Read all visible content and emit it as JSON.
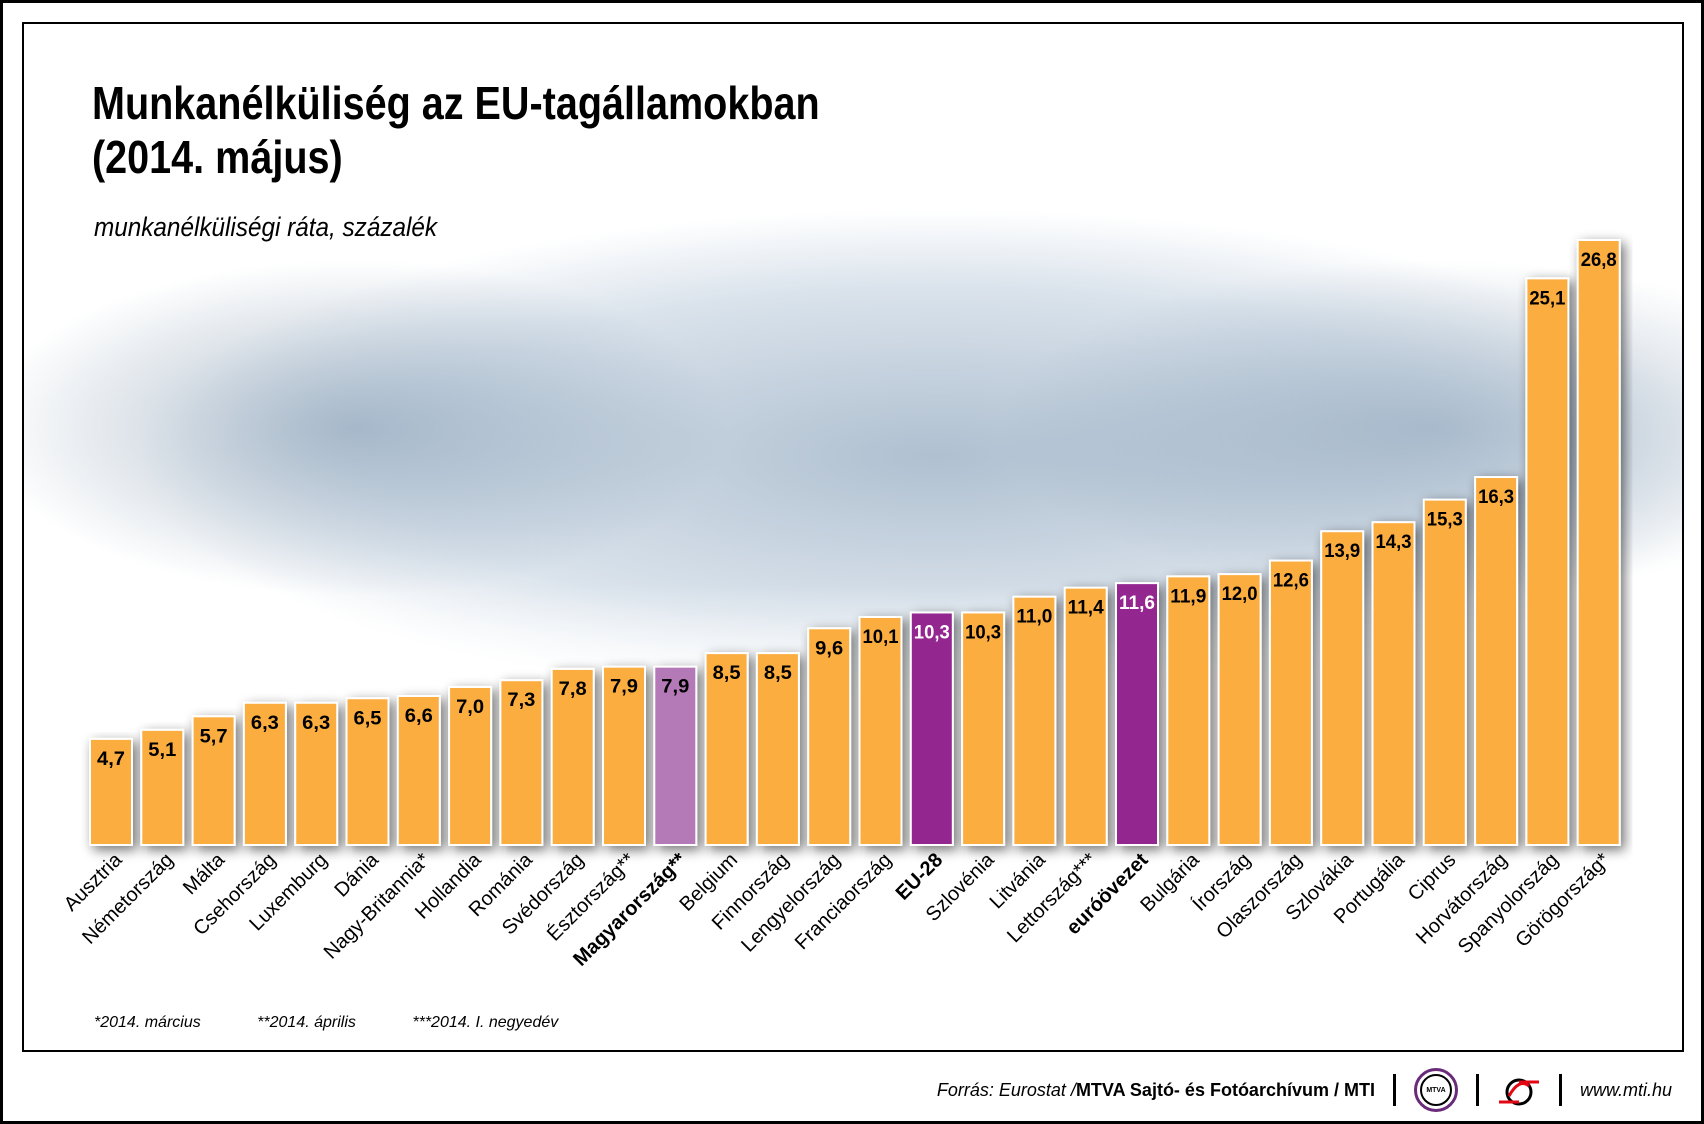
{
  "title_line1": "Munkanélküliség az EU-tagállamokban",
  "title_line2": "(2014. május)",
  "subtitle": "munkanélküliségi ráta, százalék",
  "footnotes": [
    "*2014. március",
    "**2014. április",
    "***2014. I. negyedév"
  ],
  "footer": {
    "source_prefix": "Forrás: Eurostat / ",
    "source_bold": "MTVA Sajtó- és Fotóarchívum / MTI",
    "logo1_text": "MTVA",
    "url": "www.mti.hu"
  },
  "colors": {
    "bar": "#fbad3f",
    "highlight_hu": "#b47ab8",
    "highlight_eu": "#93278f"
  },
  "chart_data": {
    "type": "bar",
    "title": "Munkanélküliség az EU-tagállamokban (2014. május)",
    "subtitle": "munkanélküliségi ráta, százalék",
    "xlabel": "",
    "ylabel": "munkanélküliségi ráta, százalék",
    "ylim": [
      0,
      27
    ],
    "grid": false,
    "categories": [
      "Ausztria",
      "Németország",
      "Málta",
      "Csehország",
      "Luxemburg",
      "Dánia",
      "Nagy-Britannia*",
      "Hollandia",
      "Románia",
      "Svédország",
      "Észtország**",
      "Magyarország**",
      "Belgium",
      "Finnország",
      "Lengyelország",
      "Franciaország",
      "EU-28",
      "Szlovénia",
      "Litvánia",
      "Lettország***",
      "euróövezet",
      "Bulgária",
      "Írország",
      "Olaszország",
      "Szlovákia",
      "Portugália",
      "Ciprus",
      "Horvátország",
      "Spanyolország",
      "Görögország*"
    ],
    "values": [
      4.7,
      5.1,
      5.7,
      6.3,
      6.3,
      6.5,
      6.6,
      7.0,
      7.3,
      7.8,
      7.9,
      7.9,
      8.5,
      8.5,
      9.6,
      10.1,
      10.3,
      10.3,
      11.0,
      11.4,
      11.6,
      11.9,
      12.0,
      12.6,
      13.9,
      14.3,
      15.3,
      16.3,
      25.1,
      26.8
    ],
    "value_labels": [
      "4,7",
      "5,1",
      "5,7",
      "6,3",
      "6,3",
      "6,5",
      "6,6",
      "7,0",
      "7,3",
      "7,8",
      "7,9",
      "7,9",
      "8,5",
      "8,5",
      "9,6",
      "10,1",
      "10,3",
      "10,3",
      "11,0",
      "11,4",
      "11,6",
      "11,9",
      "12,0",
      "12,6",
      "13,9",
      "14,3",
      "15,3",
      "16,3",
      "25,1",
      "26,8"
    ],
    "highlight": [
      "",
      "",
      "",
      "",
      "",
      "",
      "",
      "",
      "",
      "",
      "",
      "hu",
      "",
      "",
      "",
      "",
      "eu",
      "",
      "",
      "",
      "eu",
      "",
      "",
      "",
      "",
      "",
      "",
      "",
      "",
      ""
    ],
    "bold_labels": [
      "Magyarország**",
      "EU-28",
      "euróövezet"
    ]
  }
}
